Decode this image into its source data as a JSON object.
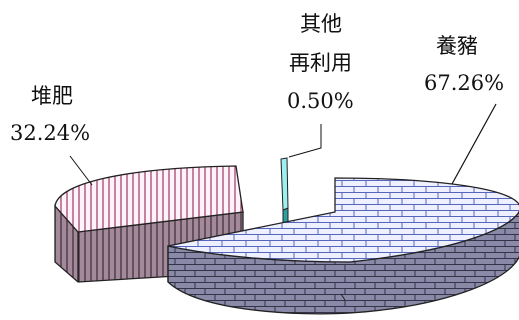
{
  "chart_data": {
    "type": "pie",
    "style": "3d-exploded",
    "slices": [
      {
        "label": "養豬",
        "value": 67.26,
        "display": "67.26%",
        "color": "#eeeeff",
        "side_color": "#8888aa",
        "pattern": "brick"
      },
      {
        "label": "堆肥",
        "value": 32.24,
        "display": "32.24%",
        "color": "#fff0f6",
        "side_color": "#a890a0",
        "pattern": "vertical-stripes"
      },
      {
        "label": "其他再利用",
        "label_lines": [
          "其他",
          "再利用"
        ],
        "value": 0.5,
        "display": "0.50%",
        "color": "#99eeee",
        "side_color": "#33aaaa",
        "pattern": "solid"
      }
    ],
    "legend": "none"
  }
}
